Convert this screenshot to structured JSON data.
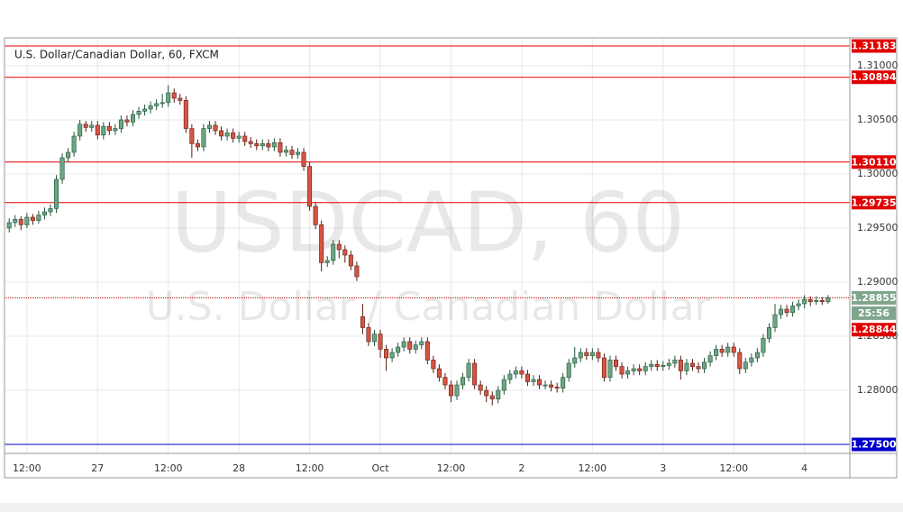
{
  "chart_data": {
    "type": "candlestick",
    "title": "U.S. Dollar/Canadian Dollar, 60, FXCM",
    "watermark": [
      "USDCAD, 60",
      "U.S. Dollar / Canadian Dollar"
    ],
    "up_color": "#6ba583",
    "down_color": "#d75442",
    "grid": true,
    "ylim": [
      1.27417,
      1.31258
    ],
    "yticks": [
      {
        "value": 1.31,
        "label": "1.31000"
      },
      {
        "value": 1.305,
        "label": "1.30500"
      },
      {
        "value": 1.3,
        "label": "1.30000"
      },
      {
        "value": 1.295,
        "label": "1.29500"
      },
      {
        "value": 1.29,
        "label": "1.29000"
      },
      {
        "value": 1.285,
        "label": "1.28500"
      },
      {
        "value": 1.28,
        "label": "1.28000"
      }
    ],
    "xlim": [
      -0.8,
      142.7
    ],
    "xticks": [
      {
        "value": 3,
        "label": "12:00"
      },
      {
        "value": 15,
        "label": "27"
      },
      {
        "value": 27,
        "label": "12:00"
      },
      {
        "value": 39,
        "label": "28"
      },
      {
        "value": 51,
        "label": "12:00"
      },
      {
        "value": 63,
        "label": "Oct"
      },
      {
        "value": 75,
        "label": "12:00"
      },
      {
        "value": 87,
        "label": "2"
      },
      {
        "value": 99,
        "label": "12:00"
      },
      {
        "value": 111,
        "label": "3"
      },
      {
        "value": 123,
        "label": "12:00"
      },
      {
        "value": 135,
        "label": "4"
      }
    ],
    "levels": [
      {
        "value": 1.31183,
        "color": "#e00000"
      },
      {
        "value": 1.30894,
        "color": "#e00000"
      },
      {
        "value": 1.3011,
        "label": "1.30110",
        "color": "#e00000"
      },
      {
        "value": 1.29735,
        "color": "#e00000"
      },
      {
        "value": 1.275,
        "label": "1.27500",
        "color": "#0000cc"
      }
    ],
    "last_price": {
      "value": 1.28855,
      "countdown": "25:56",
      "color": "#7fa68d",
      "line_color": "#c00000"
    },
    "bid": {
      "value": 1.28844,
      "color": "#e00000"
    },
    "ohlc": [
      [
        1.295,
        1.2959,
        1.2946,
        1.2955
      ],
      [
        1.2955,
        1.2962,
        1.2951,
        1.2958
      ],
      [
        1.2958,
        1.2961,
        1.2948,
        1.2953
      ],
      [
        1.2953,
        1.2964,
        1.295,
        1.296
      ],
      [
        1.296,
        1.2963,
        1.2953,
        1.2957
      ],
      [
        1.2957,
        1.2966,
        1.2954,
        1.2962
      ],
      [
        1.2962,
        1.2969,
        1.2958,
        1.2965
      ],
      [
        1.2965,
        1.2972,
        1.2961,
        1.2968
      ],
      [
        1.2968,
        1.2999,
        1.2964,
        1.2995
      ],
      [
        1.2995,
        1.3019,
        1.2991,
        1.3015
      ],
      [
        1.3015,
        1.3024,
        1.3011,
        1.302
      ],
      [
        1.302,
        1.3039,
        1.3016,
        1.3035
      ],
      [
        1.3035,
        1.305,
        1.3031,
        1.3046
      ],
      [
        1.3046,
        1.3049,
        1.3039,
        1.3043
      ],
      [
        1.3043,
        1.3049,
        1.3039,
        1.3045
      ],
      [
        1.3045,
        1.3049,
        1.3032,
        1.3036
      ],
      [
        1.3036,
        1.3048,
        1.3032,
        1.3044
      ],
      [
        1.3044,
        1.3048,
        1.3036,
        1.304
      ],
      [
        1.304,
        1.3046,
        1.3036,
        1.3042
      ],
      [
        1.3042,
        1.3054,
        1.3038,
        1.305
      ],
      [
        1.305,
        1.3054,
        1.3044,
        1.3048
      ],
      [
        1.3048,
        1.3059,
        1.3044,
        1.3055
      ],
      [
        1.3055,
        1.3062,
        1.3051,
        1.3058
      ],
      [
        1.3058,
        1.3064,
        1.3054,
        1.306
      ],
      [
        1.306,
        1.3067,
        1.3056,
        1.3063
      ],
      [
        1.3063,
        1.3069,
        1.3059,
        1.3065
      ],
      [
        1.3065,
        1.3074,
        1.3061,
        1.3066
      ],
      [
        1.3066,
        1.3082,
        1.3062,
        1.3075
      ],
      [
        1.3075,
        1.3079,
        1.3066,
        1.307
      ],
      [
        1.307,
        1.3074,
        1.3064,
        1.3068
      ],
      [
        1.3068,
        1.3072,
        1.3038,
        1.3042
      ],
      [
        1.3042,
        1.3046,
        1.3015,
        1.3028
      ],
      [
        1.3028,
        1.3032,
        1.3021,
        1.3025
      ],
      [
        1.3025,
        1.3046,
        1.3021,
        1.3042
      ],
      [
        1.3042,
        1.3049,
        1.3038,
        1.3045
      ],
      [
        1.3045,
        1.3049,
        1.3036,
        1.304
      ],
      [
        1.304,
        1.3044,
        1.3031,
        1.3035
      ],
      [
        1.3035,
        1.3042,
        1.3031,
        1.3038
      ],
      [
        1.3038,
        1.3042,
        1.3029,
        1.3033
      ],
      [
        1.3033,
        1.3039,
        1.3029,
        1.3035
      ],
      [
        1.3035,
        1.3039,
        1.3026,
        1.303
      ],
      [
        1.303,
        1.3034,
        1.3024,
        1.3028
      ],
      [
        1.3028,
        1.3032,
        1.3022,
        1.3026
      ],
      [
        1.3026,
        1.3032,
        1.3022,
        1.3028
      ],
      [
        1.3028,
        1.3032,
        1.3021,
        1.3025
      ],
      [
        1.3025,
        1.3033,
        1.3021,
        1.3029
      ],
      [
        1.3029,
        1.3033,
        1.3016,
        1.302
      ],
      [
        1.302,
        1.3026,
        1.3016,
        1.3022
      ],
      [
        1.3022,
        1.3026,
        1.3014,
        1.3018
      ],
      [
        1.3018,
        1.3024,
        1.3014,
        1.302
      ],
      [
        1.302,
        1.3024,
        1.3003,
        1.3007
      ],
      [
        1.3007,
        1.3011,
        1.2966,
        1.297
      ],
      [
        1.297,
        1.2974,
        1.2949,
        1.2953
      ],
      [
        1.2953,
        1.2957,
        1.291,
        1.2918
      ],
      [
        1.2918,
        1.2924,
        1.2914,
        1.292
      ],
      [
        1.292,
        1.2939,
        1.2916,
        1.2935
      ],
      [
        1.2935,
        1.2939,
        1.2922,
        1.293
      ],
      [
        1.293,
        1.2934,
        1.2918,
        1.2925
      ],
      [
        1.2925,
        1.2929,
        1.2911,
        1.2915
      ],
      [
        1.2915,
        1.2919,
        1.2901,
        1.2905
      ],
      [
        1.2868,
        1.288,
        1.2852,
        1.2858
      ],
      [
        1.2858,
        1.2862,
        1.2841,
        1.2845
      ],
      [
        1.2845,
        1.2856,
        1.2841,
        1.2852
      ],
      [
        1.2852,
        1.2856,
        1.283,
        1.2838
      ],
      [
        1.2838,
        1.2842,
        1.2818,
        1.283
      ],
      [
        1.283,
        1.2839,
        1.2826,
        1.2835
      ],
      [
        1.2835,
        1.2844,
        1.2831,
        1.284
      ],
      [
        1.284,
        1.2849,
        1.2836,
        1.2845
      ],
      [
        1.2845,
        1.2849,
        1.2834,
        1.2838
      ],
      [
        1.2838,
        1.2846,
        1.2834,
        1.2842
      ],
      [
        1.2842,
        1.2849,
        1.2838,
        1.2845
      ],
      [
        1.2845,
        1.2849,
        1.2824,
        1.2828
      ],
      [
        1.2828,
        1.2832,
        1.2816,
        1.282
      ],
      [
        1.282,
        1.2824,
        1.2808,
        1.2812
      ],
      [
        1.2812,
        1.2816,
        1.2801,
        1.2805
      ],
      [
        1.2805,
        1.2809,
        1.2789,
        1.2795
      ],
      [
        1.2795,
        1.2809,
        1.2791,
        1.2805
      ],
      [
        1.2805,
        1.2816,
        1.2801,
        1.2812
      ],
      [
        1.2812,
        1.2829,
        1.2808,
        1.2825
      ],
      [
        1.2825,
        1.2829,
        1.2801,
        1.2805
      ],
      [
        1.2805,
        1.2809,
        1.2796,
        1.28
      ],
      [
        1.28,
        1.2804,
        1.2789,
        1.2795
      ],
      [
        1.2795,
        1.2799,
        1.2786,
        1.2792
      ],
      [
        1.2792,
        1.2804,
        1.2788,
        1.28
      ],
      [
        1.28,
        1.2814,
        1.2796,
        1.281
      ],
      [
        1.281,
        1.2819,
        1.2806,
        1.2815
      ],
      [
        1.2815,
        1.2822,
        1.2811,
        1.2818
      ],
      [
        1.2818,
        1.2822,
        1.2811,
        1.2815
      ],
      [
        1.2815,
        1.2819,
        1.2804,
        1.2808
      ],
      [
        1.2808,
        1.2814,
        1.2804,
        1.281
      ],
      [
        1.281,
        1.2814,
        1.2801,
        1.2805
      ],
      [
        1.2805,
        1.2809,
        1.2801,
        1.2805
      ],
      [
        1.2805,
        1.2809,
        1.2799,
        1.2803
      ],
      [
        1.2803,
        1.2807,
        1.2798,
        1.2802
      ],
      [
        1.2802,
        1.2816,
        1.2798,
        1.2812
      ],
      [
        1.2812,
        1.2829,
        1.2808,
        1.2825
      ],
      [
        1.2825,
        1.284,
        1.2821,
        1.283
      ],
      [
        1.283,
        1.2839,
        1.2826,
        1.2835
      ],
      [
        1.2835,
        1.2839,
        1.2828,
        1.2832
      ],
      [
        1.2832,
        1.2839,
        1.2828,
        1.2835
      ],
      [
        1.2835,
        1.2839,
        1.2826,
        1.283
      ],
      [
        1.283,
        1.2834,
        1.2808,
        1.2812
      ],
      [
        1.2812,
        1.2832,
        1.2808,
        1.2828
      ],
      [
        1.2828,
        1.2832,
        1.2818,
        1.2822
      ],
      [
        1.2822,
        1.2826,
        1.2811,
        1.2815
      ],
      [
        1.2815,
        1.2822,
        1.2811,
        1.2818
      ],
      [
        1.2818,
        1.2824,
        1.2814,
        1.282
      ],
      [
        1.282,
        1.2824,
        1.2814,
        1.2818
      ],
      [
        1.2818,
        1.2826,
        1.2814,
        1.2822
      ],
      [
        1.2822,
        1.2828,
        1.2818,
        1.2824
      ],
      [
        1.2824,
        1.2828,
        1.2818,
        1.2822
      ],
      [
        1.2822,
        1.2827,
        1.2818,
        1.2823
      ],
      [
        1.2823,
        1.2829,
        1.2819,
        1.2825
      ],
      [
        1.2825,
        1.2832,
        1.2821,
        1.2828
      ],
      [
        1.2828,
        1.2832,
        1.281,
        1.2818
      ],
      [
        1.2818,
        1.2829,
        1.2814,
        1.2825
      ],
      [
        1.2825,
        1.2829,
        1.2818,
        1.2822
      ],
      [
        1.2822,
        1.2826,
        1.2816,
        1.282
      ],
      [
        1.282,
        1.283,
        1.2816,
        1.2826
      ],
      [
        1.2826,
        1.2836,
        1.2822,
        1.2832
      ],
      [
        1.2832,
        1.2842,
        1.2828,
        1.2838
      ],
      [
        1.2838,
        1.2842,
        1.2831,
        1.2835
      ],
      [
        1.2835,
        1.2844,
        1.2831,
        1.284
      ],
      [
        1.284,
        1.2844,
        1.2831,
        1.2835
      ],
      [
        1.2835,
        1.2839,
        1.2815,
        1.282
      ],
      [
        1.282,
        1.283,
        1.2816,
        1.2826
      ],
      [
        1.2826,
        1.2834,
        1.2822,
        1.283
      ],
      [
        1.283,
        1.2839,
        1.2826,
        1.2835
      ],
      [
        1.2835,
        1.2852,
        1.2831,
        1.2848
      ],
      [
        1.2848,
        1.2862,
        1.2844,
        1.2858
      ],
      [
        1.2858,
        1.288,
        1.2854,
        1.287
      ],
      [
        1.287,
        1.2879,
        1.2866,
        1.2875
      ],
      [
        1.2875,
        1.2879,
        1.2868,
        1.2872
      ],
      [
        1.2872,
        1.2882,
        1.2868,
        1.2878
      ],
      [
        1.2878,
        1.2884,
        1.2874,
        1.288
      ],
      [
        1.288,
        1.2888,
        1.2876,
        1.2884
      ],
      [
        1.2884,
        1.2887,
        1.2878,
        1.2882
      ],
      [
        1.2882,
        1.2887,
        1.2879,
        1.2883
      ],
      [
        1.2883,
        1.2886,
        1.2879,
        1.2882
      ],
      [
        1.2882,
        1.2888,
        1.288,
        1.28855
      ]
    ]
  }
}
